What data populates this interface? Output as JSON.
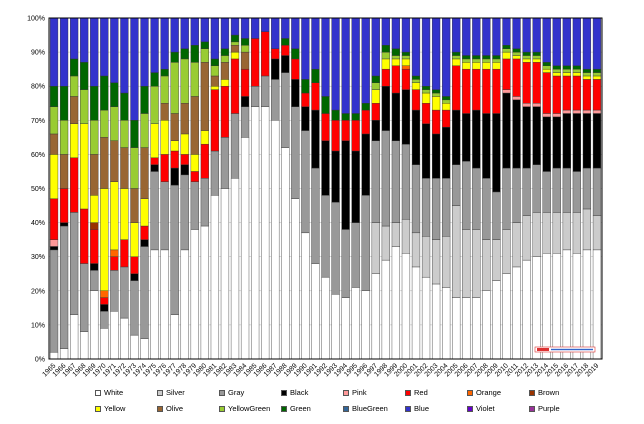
{
  "chart_data": {
    "type": "stacked-bar-100",
    "ylim": [
      0,
      100
    ],
    "yticks": [
      "0%",
      "10%",
      "20%",
      "30%",
      "40%",
      "50%",
      "60%",
      "70%",
      "80%",
      "90%",
      "100%"
    ],
    "categories": [
      "1965",
      "1966",
      "1967",
      "1968",
      "1969",
      "1970",
      "1971",
      "1972",
      "1973",
      "1974",
      "1975",
      "1976",
      "1977",
      "1978",
      "1979",
      "1980",
      "1981",
      "1982",
      "1983",
      "1984",
      "1985",
      "1986",
      "1987",
      "1988",
      "1989",
      "1990",
      "1991",
      "1992",
      "1993",
      "1994",
      "1995",
      "1996",
      "1997",
      "1998",
      "1999",
      "2000",
      "2001",
      "2002",
      "2003",
      "2004",
      "2005",
      "2006",
      "2007",
      "2008",
      "2009",
      "2010",
      "2011",
      "2012",
      "2013",
      "2014",
      "2015",
      "2016",
      "2017",
      "2018",
      "2019"
    ],
    "series": [
      {
        "name": "White",
        "color": "#ffffff",
        "values": [
          2,
          3,
          13,
          8,
          20,
          9,
          14,
          12,
          7,
          6,
          32,
          32,
          13,
          32,
          38,
          39,
          48,
          50,
          53,
          65,
          74,
          74,
          70,
          62,
          47,
          37,
          28,
          24,
          19,
          18,
          21,
          20,
          25,
          29,
          33,
          31,
          27,
          24,
          22,
          21,
          18,
          18,
          18,
          20,
          23,
          25,
          27,
          29,
          30,
          31,
          31,
          32,
          31,
          32,
          32
        ]
      },
      {
        "name": "Silver",
        "color": "#cccccc",
        "values": [
          0,
          0,
          0,
          0,
          0,
          0,
          0,
          0,
          0,
          0,
          0,
          0,
          0,
          0,
          0,
          0,
          0,
          0,
          0,
          0,
          0,
          0,
          0,
          0,
          0,
          0,
          0,
          0,
          0,
          0,
          0,
          0,
          15,
          10,
          7,
          10,
          10,
          12,
          13,
          15,
          27,
          20,
          20,
          15,
          12,
          13,
          13,
          13,
          13,
          12,
          12,
          11,
          12,
          12,
          10
        ]
      },
      {
        "name": "Gray",
        "color": "#999999",
        "values": [
          30,
          36,
          30,
          20,
          6,
          5,
          12,
          15,
          16,
          27,
          23,
          20,
          38,
          22,
          14,
          14,
          13,
          15,
          19,
          9,
          6,
          9,
          12,
          22,
          27,
          30,
          28,
          24,
          27,
          20,
          19,
          28,
          24,
          28,
          24,
          22,
          20,
          17,
          18,
          17,
          12,
          20,
          18,
          18,
          14,
          18,
          16,
          14,
          14,
          12,
          13,
          13,
          12,
          12,
          14
        ]
      },
      {
        "name": "Black",
        "color": "#000000",
        "values": [
          1,
          1,
          0,
          0,
          2,
          2,
          0,
          0,
          2,
          2,
          2,
          0,
          5,
          3,
          0,
          0,
          0,
          0,
          0,
          3,
          0,
          0,
          6,
          5,
          8,
          7,
          17,
          16,
          15,
          26,
          21,
          18,
          6,
          13,
          14,
          16,
          16,
          16,
          13,
          15,
          16,
          14,
          17,
          19,
          23,
          22,
          20,
          18,
          17,
          16,
          15,
          16,
          17,
          16,
          16
        ]
      },
      {
        "name": "Pink",
        "color": "#ff9999",
        "values": [
          2,
          0,
          0,
          0,
          0,
          0,
          0,
          0,
          0,
          0,
          0,
          0,
          0,
          0,
          0,
          0,
          0,
          0,
          0,
          0,
          0,
          0,
          0,
          0,
          0,
          0,
          0,
          0,
          0,
          0,
          0,
          0,
          0,
          0,
          0,
          0,
          0,
          0,
          0,
          0,
          0,
          0,
          0,
          0,
          0,
          1,
          1,
          1,
          1,
          1,
          1,
          1,
          1,
          1,
          1
        ]
      },
      {
        "name": "Red",
        "color": "#ff0000",
        "values": [
          12,
          10,
          16,
          16,
          10,
          2,
          4,
          8,
          5,
          4,
          2,
          8,
          5,
          3,
          3,
          10,
          18,
          15,
          16,
          8,
          14,
          13,
          3,
          3,
          6,
          4,
          8,
          8,
          9,
          6,
          9,
          7,
          5,
          5,
          8,
          6,
          6,
          6,
          7,
          5,
          13,
          13,
          12,
          13,
          13,
          9,
          11,
          12,
          12,
          12,
          11,
          10,
          10,
          9,
          9
        ]
      },
      {
        "name": "Orange",
        "color": "#ff6600",
        "values": [
          0,
          0,
          0,
          0,
          0,
          2,
          2,
          0,
          0,
          0,
          0,
          0,
          0,
          0,
          0,
          0,
          0,
          0,
          0,
          0,
          0,
          0,
          0,
          0,
          0,
          0,
          0,
          0,
          0,
          0,
          0,
          0,
          0,
          0,
          0,
          1,
          0,
          0,
          0,
          0,
          0,
          0,
          0,
          0,
          0,
          0,
          0,
          0,
          0,
          0,
          0,
          0,
          0,
          0,
          0
        ]
      },
      {
        "name": "Brown",
        "color": "#993300",
        "values": [
          0,
          0,
          0,
          0,
          2,
          0,
          0,
          0,
          0,
          0,
          0,
          0,
          0,
          0,
          0,
          0,
          0,
          0,
          0,
          0,
          0,
          0,
          0,
          0,
          0,
          0,
          0,
          0,
          0,
          0,
          0,
          0,
          0,
          0,
          0,
          0,
          0,
          0,
          0,
          0,
          0,
          0,
          0,
          0,
          0,
          0,
          0,
          0,
          0,
          0,
          0,
          0,
          0,
          0,
          0
        ]
      },
      {
        "name": "Yellow",
        "color": "#ffff00",
        "values": [
          13,
          0,
          10,
          25,
          8,
          30,
          20,
          15,
          10,
          8,
          10,
          10,
          3,
          6,
          5,
          4,
          1,
          2,
          2,
          0,
          0,
          0,
          0,
          0,
          0,
          0,
          0,
          0,
          0,
          0,
          0,
          0,
          4,
          3,
          2,
          2,
          2,
          3,
          4,
          2,
          2,
          2,
          2,
          2,
          2,
          2,
          1,
          1,
          1,
          1,
          1,
          1,
          1,
          1,
          1
        ]
      },
      {
        "name": "Olive",
        "color": "#996633",
        "values": [
          6,
          10,
          8,
          0,
          12,
          15,
          12,
          12,
          10,
          15,
          0,
          5,
          8,
          9,
          17,
          20,
          3,
          5,
          2,
          5,
          0,
          0,
          0,
          0,
          0,
          0,
          0,
          0,
          0,
          0,
          0,
          0,
          0,
          0,
          0,
          0,
          0,
          0,
          0,
          0,
          0,
          0,
          0,
          0,
          0,
          0,
          0,
          0,
          0,
          0,
          0,
          0,
          0,
          0,
          0
        ]
      },
      {
        "name": "YellowGreen",
        "color": "#99cc33",
        "values": [
          8,
          10,
          6,
          10,
          10,
          8,
          10,
          8,
          12,
          10,
          11,
          8,
          15,
          13,
          10,
          4,
          3,
          2,
          1,
          2,
          0,
          0,
          0,
          0,
          0,
          0,
          0,
          0,
          0,
          0,
          0,
          0,
          2,
          2,
          1,
          1,
          1,
          1,
          1,
          1,
          1,
          1,
          1,
          1,
          1,
          1,
          1,
          1,
          1,
          1,
          1,
          1,
          1,
          1,
          1
        ]
      },
      {
        "name": "Green",
        "color": "#006600",
        "values": [
          6,
          10,
          5,
          8,
          10,
          10,
          7,
          8,
          8,
          8,
          4,
          2,
          3,
          3,
          5,
          2,
          2,
          2,
          2,
          2,
          0,
          0,
          0,
          2,
          3,
          4,
          4,
          5,
          3,
          2,
          2,
          2,
          2,
          2,
          2,
          1,
          1,
          1,
          1,
          1,
          1,
          1,
          1,
          1,
          1,
          1,
          1,
          1,
          1,
          1,
          1,
          1,
          1,
          1,
          1
        ]
      },
      {
        "name": "BlueGreen",
        "color": "#336699",
        "values": [
          0,
          0,
          0,
          0,
          0,
          0,
          0,
          0,
          0,
          0,
          0,
          0,
          0,
          0,
          0,
          0,
          0,
          0,
          0,
          0,
          0,
          0,
          0,
          0,
          0,
          0,
          0,
          0,
          0,
          0,
          0,
          0,
          0,
          0,
          0,
          0,
          0,
          0,
          0,
          0,
          0,
          0,
          0,
          0,
          0,
          0,
          0,
          0,
          0,
          0,
          0,
          0,
          0,
          0,
          0
        ]
      },
      {
        "name": "Blue",
        "color": "#3333cc",
        "values": [
          20,
          20,
          12,
          13,
          20,
          17,
          19,
          22,
          30,
          20,
          16,
          15,
          10,
          9,
          8,
          7,
          12,
          9,
          5,
          6,
          6,
          4,
          9,
          6,
          9,
          18,
          15,
          23,
          27,
          28,
          28,
          25,
          17,
          8,
          9,
          10,
          17,
          20,
          21,
          23,
          10,
          11,
          11,
          11,
          11,
          8,
          9,
          10,
          10,
          13,
          14,
          14,
          14,
          15,
          15
        ]
      },
      {
        "name": "Violet",
        "color": "#6600cc",
        "values": [
          0,
          0,
          0,
          0,
          0,
          0,
          0,
          0,
          0,
          0,
          0,
          0,
          0,
          0,
          0,
          0,
          0,
          0,
          0,
          0,
          0,
          0,
          0,
          0,
          0,
          0,
          0,
          0,
          0,
          0,
          0,
          0,
          0,
          0,
          0,
          0,
          0,
          0,
          0,
          0,
          0,
          0,
          0,
          0,
          0,
          0,
          0,
          0,
          0,
          0,
          0,
          0,
          0,
          0,
          0
        ]
      },
      {
        "name": "Purple",
        "color": "#993399",
        "values": [
          0,
          0,
          0,
          0,
          0,
          0,
          0,
          0,
          0,
          0,
          0,
          0,
          0,
          0,
          0,
          0,
          0,
          0,
          0,
          0,
          0,
          0,
          0,
          0,
          0,
          0,
          0,
          0,
          0,
          0,
          0,
          0,
          0,
          0,
          0,
          0,
          0,
          0,
          0,
          0,
          0,
          0,
          0,
          0,
          0,
          0,
          0,
          0,
          0,
          0,
          0,
          0,
          0,
          0,
          0
        ]
      }
    ]
  }
}
